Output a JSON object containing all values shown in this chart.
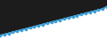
{
  "x": [
    0,
    1,
    2,
    3,
    4,
    5,
    6,
    7,
    8,
    9,
    10,
    11,
    12,
    13,
    14,
    15,
    16,
    17,
    18,
    19,
    20,
    21,
    22,
    23,
    24,
    25
  ],
  "y": [
    20,
    20.5,
    21,
    21.5,
    22,
    22.5,
    23,
    23.5,
    24,
    24.5,
    25,
    25.5,
    26,
    26.5,
    27,
    27.5,
    28,
    28.5,
    29,
    29.5,
    30,
    30.5,
    31,
    31.5,
    32,
    33
  ],
  "line_color": "#3a9fd8",
  "line_width": 1.2,
  "marker_color": "#3a9fd8",
  "dark_bg_color": "#1c1c1c",
  "light_bg_color": "#ffffff",
  "ylim": [
    18,
    36
  ],
  "xlim": [
    0,
    25
  ]
}
